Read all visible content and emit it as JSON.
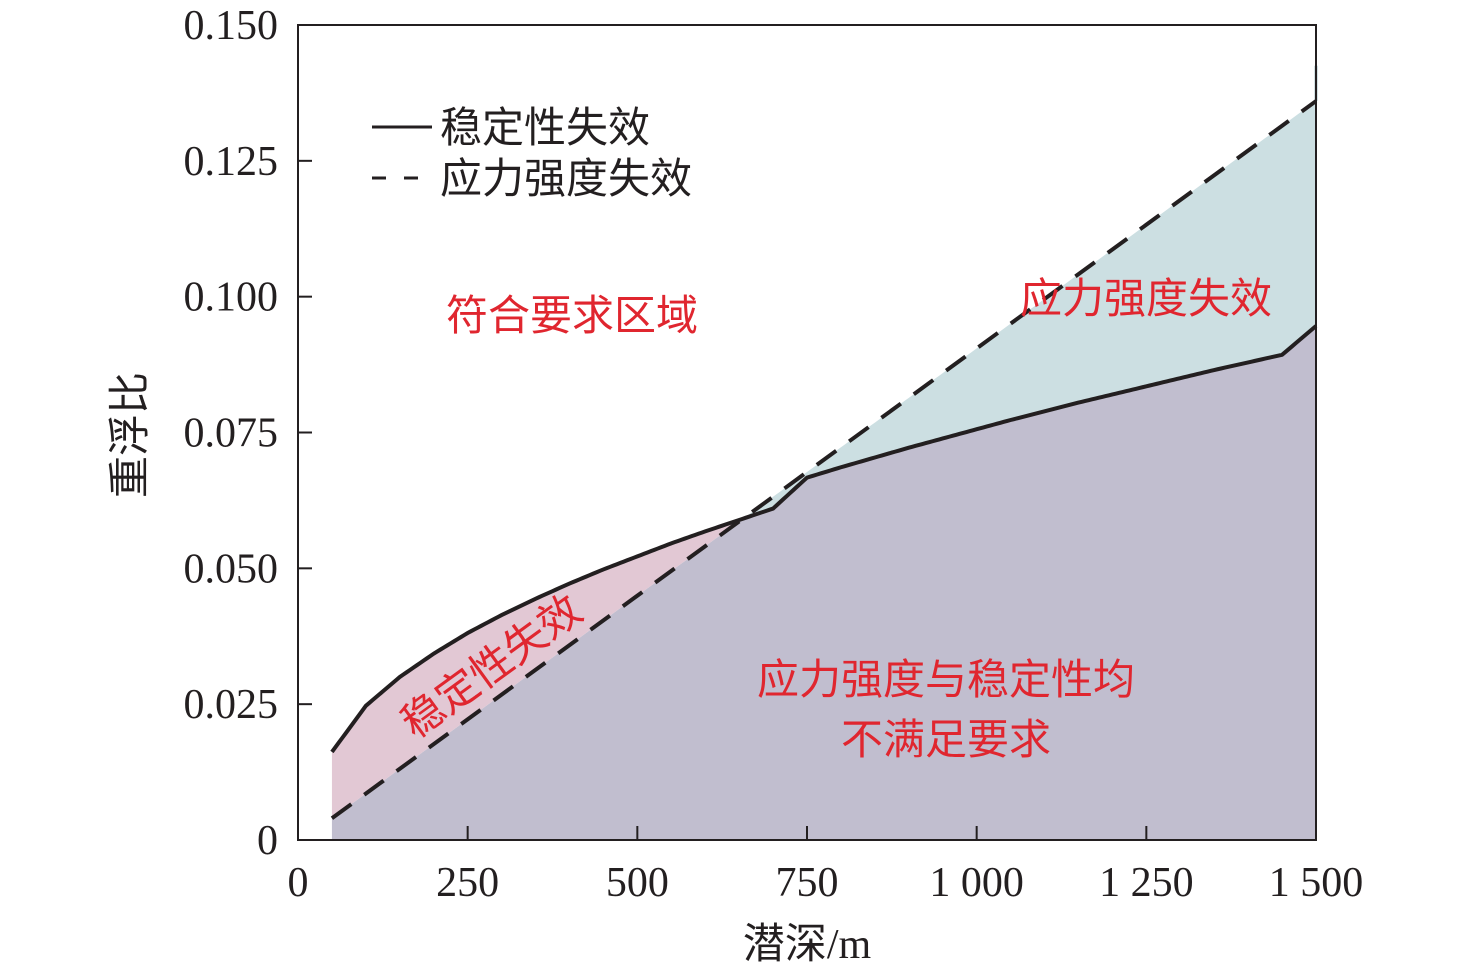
{
  "chart_data": {
    "type": "line",
    "xlabel": "潜深/m",
    "ylabel": "重浮比",
    "xlim": [
      0,
      1500
    ],
    "ylim": [
      0,
      0.15
    ],
    "xticks": [
      0,
      250,
      500,
      750,
      1000,
      1250,
      1500
    ],
    "xtick_labels": [
      "0",
      "250",
      "500",
      "750",
      "1 000",
      "1 250",
      "1 500"
    ],
    "yticks": [
      0,
      0.025,
      0.05,
      0.075,
      0.1,
      0.125,
      0.15
    ],
    "ytick_labels": [
      "0",
      "0.025",
      "0.050",
      "0.075",
      "0.100",
      "0.125",
      "0.150"
    ],
    "grid": false,
    "legend_position": "top-left",
    "series": [
      {
        "name": "稳定性失效",
        "style": "solid",
        "color": "#231f20",
        "x": [
          50,
          100,
          150,
          200,
          250,
          300,
          350,
          400,
          450,
          500,
          550,
          600,
          650,
          700,
          750,
          800,
          850,
          900,
          950,
          1000,
          1050,
          1100,
          1150,
          1200,
          1250,
          1300,
          1350,
          1400,
          1450,
          1500
        ],
        "y": [
          0.0162,
          0.0247,
          0.03,
          0.0343,
          0.0381,
          0.0414,
          0.0444,
          0.0472,
          0.0498,
          0.0522,
          0.0546,
          0.0568,
          0.0589,
          0.061,
          0.0667,
          0.0686,
          0.0704,
          0.0722,
          0.0739,
          0.0756,
          0.0773,
          0.0789,
          0.0805,
          0.082,
          0.0835,
          0.085,
          0.0865,
          0.0879,
          0.0893,
          0.0946
        ]
      },
      {
        "name": "应力强度失效",
        "style": "dashed",
        "color": "#231f20",
        "x": [
          50,
          1500
        ],
        "y": [
          0.004,
          0.136
        ]
      }
    ],
    "regions": [
      {
        "label": "符合要求区域",
        "color": "#ffffff"
      },
      {
        "label": "应力强度失效",
        "color": "#ccdfe2"
      },
      {
        "label": "稳定性失效",
        "color": "#e2c8d4"
      },
      {
        "label_lines": [
          "应力强度与稳定性均",
          "不满足要求"
        ],
        "color": "#c1becf"
      }
    ],
    "label_color": "#e0262f"
  }
}
